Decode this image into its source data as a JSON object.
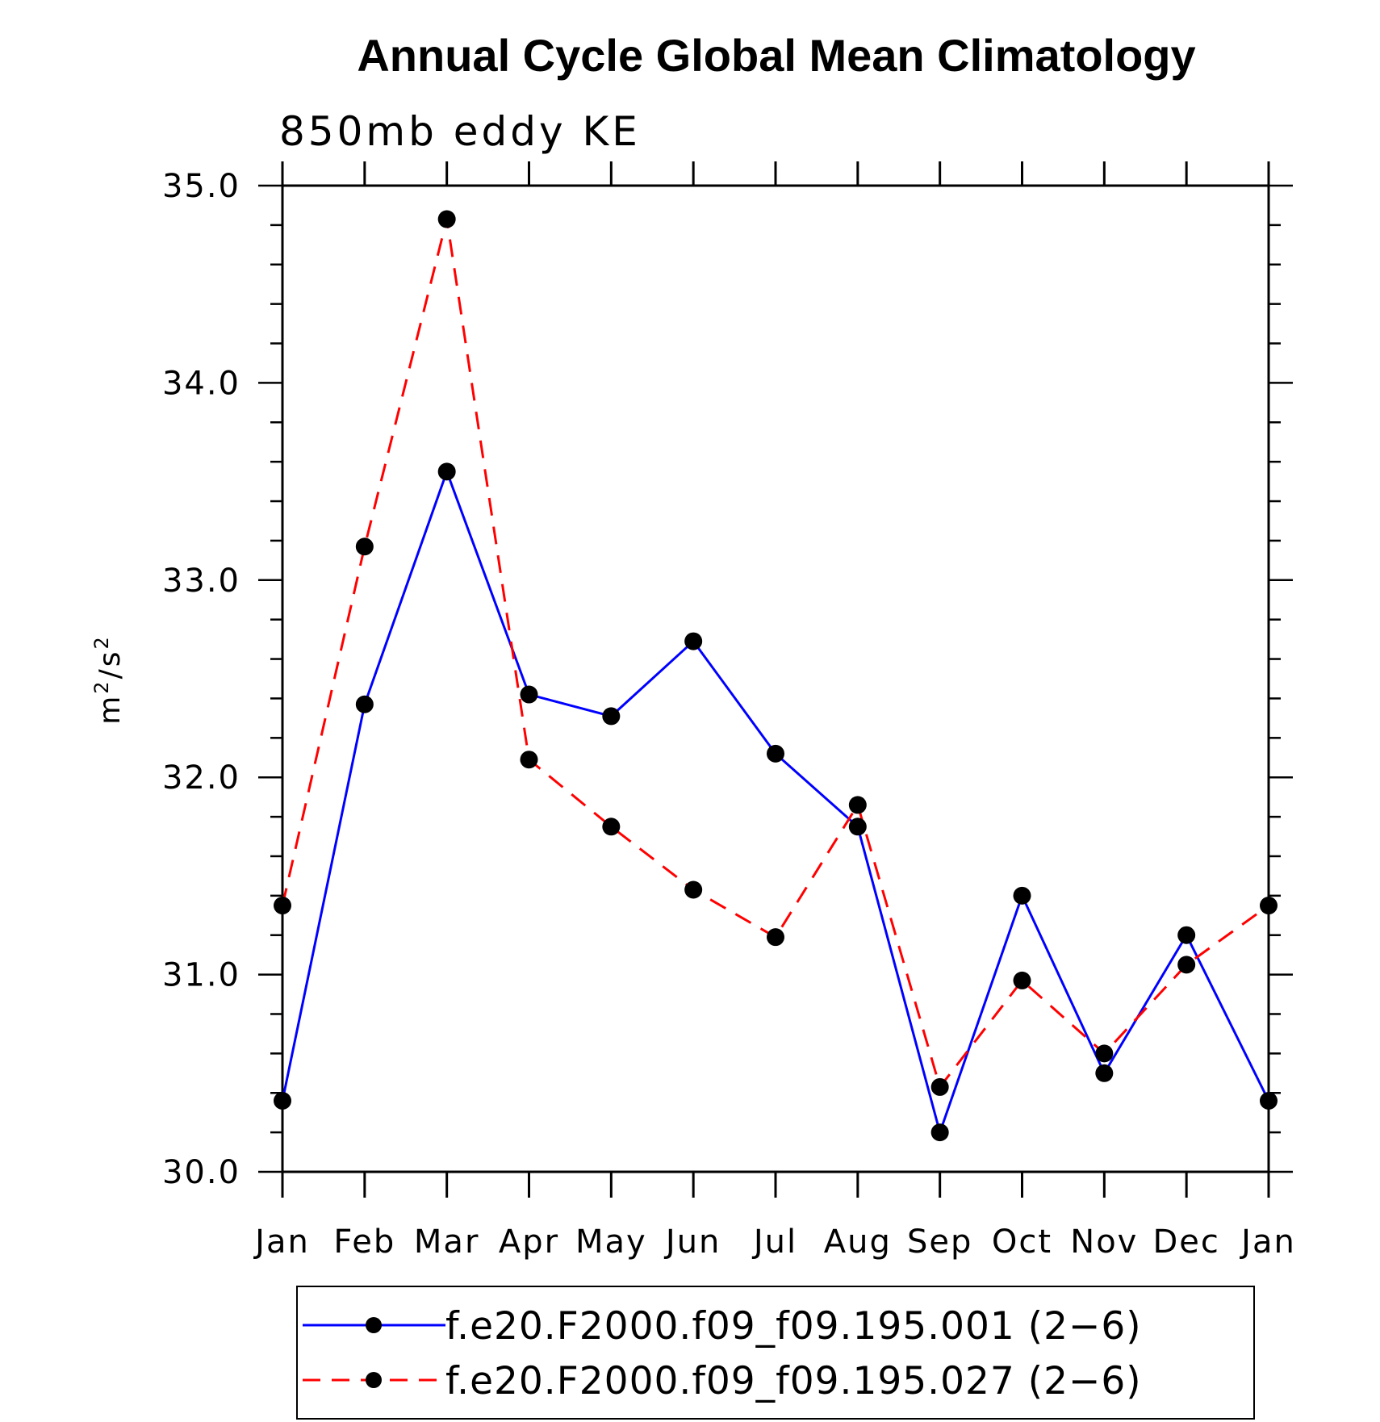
{
  "chart_data": {
    "type": "line",
    "title": "Annual Cycle Global Mean Climatology",
    "subtitle": "850mb eddy KE",
    "ylabel": "m2/s2",
    "xlabel": "",
    "categories": [
      "Jan",
      "Feb",
      "Mar",
      "Apr",
      "May",
      "Jun",
      "Jul",
      "Aug",
      "Sep",
      "Oct",
      "Nov",
      "Dec",
      "Jan"
    ],
    "ylim": [
      30.0,
      35.0
    ],
    "y_ticks": [
      "30.0",
      "31.0",
      "32.0",
      "33.0",
      "34.0",
      "35.0"
    ],
    "grid": false,
    "legend_position": "bottom",
    "series": [
      {
        "name": "f.e20.F2000.f09_f09.195.001 (2−6)",
        "color": "#0000ff",
        "line_style": "solid",
        "marker": "filled-circle",
        "values": [
          30.36,
          32.37,
          33.55,
          32.42,
          32.31,
          32.69,
          32.12,
          31.75,
          30.2,
          31.4,
          30.5,
          31.2,
          30.36
        ]
      },
      {
        "name": "f.e20.F2000.f09_f09.195.027 (2−6)",
        "color": "#ff0000",
        "line_style": "dashed",
        "marker": "filled-circle",
        "values": [
          31.35,
          33.17,
          34.83,
          32.09,
          31.75,
          31.43,
          31.19,
          31.86,
          30.43,
          30.97,
          30.6,
          31.05,
          31.35
        ]
      }
    ]
  }
}
